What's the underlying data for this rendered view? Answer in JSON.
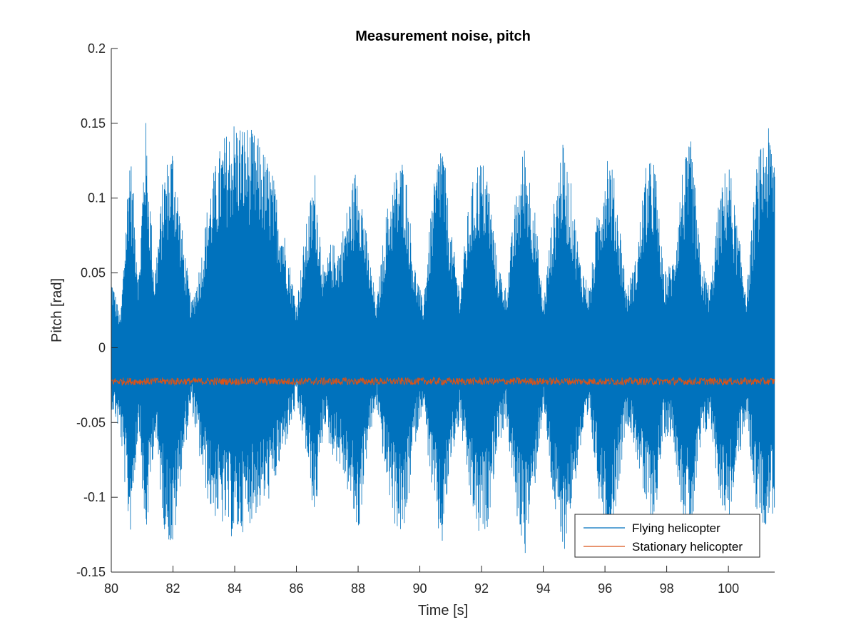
{
  "chart_data": {
    "type": "line",
    "title": "Measurement noise, pitch",
    "xlabel": "Time [s]",
    "ylabel": "Pitch [rad]",
    "xlim": [
      80,
      101.5
    ],
    "ylim": [
      -0.15,
      0.2
    ],
    "xticks": [
      80,
      82,
      84,
      86,
      88,
      90,
      92,
      94,
      96,
      98,
      100
    ],
    "xtick_labels": [
      "80",
      "82",
      "84",
      "86",
      "88",
      "90",
      "92",
      "94",
      "96",
      "98",
      "100"
    ],
    "yticks": [
      -0.15,
      -0.1,
      -0.05,
      0,
      0.05,
      0.1,
      0.15,
      0.2
    ],
    "ytick_labels": [
      "-0.15",
      "-0.1",
      "-0.05",
      "0",
      "0.05",
      "0.1",
      "0.15",
      "0.2"
    ],
    "grid": false,
    "legend_position": "bottom-right",
    "series": [
      {
        "name": "Flying helicopter",
        "color": "#0072BD",
        "envelope": {
          "x": [
            80.0,
            80.3,
            80.6,
            80.9,
            81.1,
            81.4,
            81.7,
            82.0,
            82.3,
            82.6,
            82.9,
            83.2,
            83.6,
            84.0,
            84.4,
            84.8,
            85.2,
            85.6,
            86.0,
            86.3,
            86.6,
            86.9,
            87.1,
            87.4,
            87.7,
            88.0,
            88.3,
            88.6,
            88.9,
            89.2,
            89.5,
            89.8,
            90.1,
            90.4,
            90.7,
            91.0,
            91.3,
            91.6,
            91.9,
            92.2,
            92.5,
            92.8,
            93.1,
            93.4,
            93.7,
            94.0,
            94.3,
            94.6,
            94.9,
            95.2,
            95.5,
            95.8,
            96.1,
            96.4,
            96.7,
            97.0,
            97.3,
            97.6,
            97.9,
            98.2,
            98.5,
            98.8,
            99.1,
            99.4,
            99.7,
            100.0,
            100.3,
            100.6,
            100.9,
            101.2,
            101.5
          ],
          "upper": [
            0.05,
            0.02,
            0.14,
            0.05,
            0.16,
            0.05,
            0.12,
            0.14,
            0.08,
            0.03,
            0.06,
            0.11,
            0.14,
            0.155,
            0.15,
            0.14,
            0.12,
            0.08,
            0.03,
            0.08,
            0.12,
            0.05,
            0.07,
            0.07,
            0.1,
            0.13,
            0.07,
            0.03,
            0.09,
            0.12,
            0.13,
            0.06,
            0.03,
            0.1,
            0.15,
            0.08,
            0.04,
            0.1,
            0.13,
            0.12,
            0.06,
            0.04,
            0.1,
            0.14,
            0.1,
            0.03,
            0.09,
            0.14,
            0.11,
            0.06,
            0.04,
            0.1,
            0.14,
            0.1,
            0.04,
            0.06,
            0.12,
            0.13,
            0.05,
            0.06,
            0.12,
            0.14,
            0.06,
            0.04,
            0.1,
            0.13,
            0.08,
            0.04,
            0.12,
            0.15,
            0.14
          ],
          "lower": [
            -0.04,
            -0.06,
            -0.13,
            -0.05,
            -0.14,
            -0.06,
            -0.12,
            -0.14,
            -0.08,
            -0.04,
            -0.08,
            -0.11,
            -0.12,
            -0.13,
            -0.12,
            -0.11,
            -0.1,
            -0.07,
            -0.04,
            -0.07,
            -0.12,
            -0.05,
            -0.07,
            -0.08,
            -0.1,
            -0.13,
            -0.07,
            -0.04,
            -0.09,
            -0.12,
            -0.13,
            -0.07,
            -0.04,
            -0.1,
            -0.14,
            -0.08,
            -0.05,
            -0.1,
            -0.13,
            -0.12,
            -0.07,
            -0.05,
            -0.11,
            -0.14,
            -0.1,
            -0.04,
            -0.1,
            -0.145,
            -0.11,
            -0.07,
            -0.05,
            -0.1,
            -0.14,
            -0.1,
            -0.05,
            -0.07,
            -0.11,
            -0.12,
            -0.06,
            -0.06,
            -0.11,
            -0.13,
            -0.07,
            -0.05,
            -0.1,
            -0.12,
            -0.08,
            -0.05,
            -0.11,
            -0.12,
            -0.11
          ]
        }
      },
      {
        "name": "Stationary helicopter",
        "color": "#D95319",
        "mean": -0.0225,
        "amplitude": 0.0025
      }
    ]
  }
}
